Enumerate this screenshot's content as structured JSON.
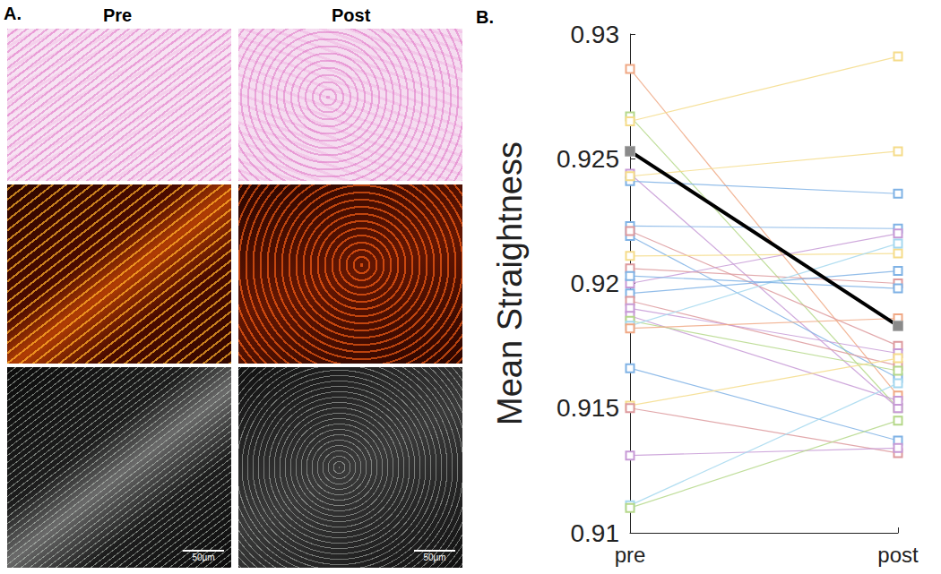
{
  "images": {
    "label": "A.",
    "columns": [
      "Pre",
      "Post"
    ],
    "scale_bars": [
      "50µm",
      "50µm"
    ]
  },
  "chart_data": {
    "type": "line",
    "title": "B.",
    "y_label": "Mean Straightness",
    "categories": [
      "pre",
      "post"
    ],
    "ylim": [
      0.91,
      0.93
    ],
    "yticks": [
      0.91,
      0.915,
      0.92,
      0.925,
      0.93
    ],
    "grid": false,
    "series": [
      {
        "color": "#f0a884",
        "marker": "square",
        "line_style": "thin",
        "values": [
          0.9286,
          0.9155
        ]
      },
      {
        "color": "#b5d88a",
        "marker": "square",
        "line_style": "thin",
        "values": [
          0.9267,
          0.915
        ]
      },
      {
        "color": "#f5dc8a",
        "marker": "square",
        "line_style": "thin",
        "values": [
          0.9265,
          0.9291
        ]
      },
      {
        "color": "#c79ad6",
        "marker": "square",
        "line_style": "thin",
        "values": [
          0.9244,
          0.915
        ]
      },
      {
        "color": "#7fb2e5",
        "marker": "square",
        "line_style": "thin",
        "values": [
          0.9241,
          0.9236
        ]
      },
      {
        "color": "#f5dc8a",
        "marker": "square",
        "line_style": "thin",
        "values": [
          0.9243,
          0.9253
        ]
      },
      {
        "color": "#7fb2e5",
        "marker": "square",
        "line_style": "thin",
        "values": [
          0.9223,
          0.9222
        ]
      },
      {
        "color": "#7fb2e5",
        "marker": "square",
        "line_style": "thin",
        "values": [
          0.9219,
          0.9162
        ]
      },
      {
        "color": "#dd9a9e",
        "marker": "square",
        "line_style": "thin",
        "values": [
          0.9221,
          0.9175
        ]
      },
      {
        "color": "#f5dc8a",
        "marker": "square",
        "line_style": "thin",
        "values": [
          0.9211,
          0.9212
        ]
      },
      {
        "color": "#dd9a9e",
        "marker": "square",
        "line_style": "thin",
        "values": [
          0.9206,
          0.92
        ]
      },
      {
        "color": "#c79ad6",
        "marker": "square",
        "line_style": "thin",
        "values": [
          0.92,
          0.922
        ]
      },
      {
        "color": "#7fb2e5",
        "marker": "square",
        "line_style": "thin",
        "values": [
          0.9196,
          0.9205
        ]
      },
      {
        "color": "#dd9a9e",
        "marker": "square",
        "line_style": "thin",
        "values": [
          0.9193,
          0.9167
        ]
      },
      {
        "color": "#c79ad6",
        "marker": "square",
        "line_style": "thin",
        "values": [
          0.919,
          0.9172
        ]
      },
      {
        "color": "#c79ad6",
        "marker": "square",
        "line_style": "thin",
        "values": [
          0.9187,
          0.9153
        ]
      },
      {
        "color": "#b5d88a",
        "marker": "square",
        "line_style": "thin",
        "values": [
          0.9185,
          0.9165
        ]
      },
      {
        "color": "#a5d8ef",
        "marker": "square",
        "line_style": "thin",
        "values": [
          0.9183,
          0.9216
        ]
      },
      {
        "color": "#f0a884",
        "marker": "square",
        "line_style": "thin",
        "values": [
          0.9182,
          0.9186
        ]
      },
      {
        "color": "#7fb2e5",
        "marker": "square",
        "line_style": "thin",
        "values": [
          0.9166,
          0.9137
        ]
      },
      {
        "color": "#f5dc8a",
        "marker": "square",
        "line_style": "thin",
        "values": [
          0.9151,
          0.917
        ]
      },
      {
        "color": "#dd9a9e",
        "marker": "square",
        "line_style": "thin",
        "values": [
          0.915,
          0.9132
        ]
      },
      {
        "color": "#c79ad6",
        "marker": "square",
        "line_style": "thin",
        "values": [
          0.9131,
          0.9134
        ]
      },
      {
        "color": "#a5d8ef",
        "marker": "square",
        "line_style": "thin",
        "values": [
          0.9111,
          0.916
        ]
      },
      {
        "color": "#b5d88a",
        "marker": "square",
        "line_style": "thin",
        "values": [
          0.911,
          0.9145
        ]
      },
      {
        "color": "#7fb2e5",
        "marker": "square",
        "line_style": "thin",
        "values": [
          0.9203,
          0.9198
        ]
      },
      {
        "color": "#000000",
        "marker": "filled_square",
        "line_style": "bold",
        "values": [
          0.9253,
          0.9183
        ]
      }
    ]
  }
}
